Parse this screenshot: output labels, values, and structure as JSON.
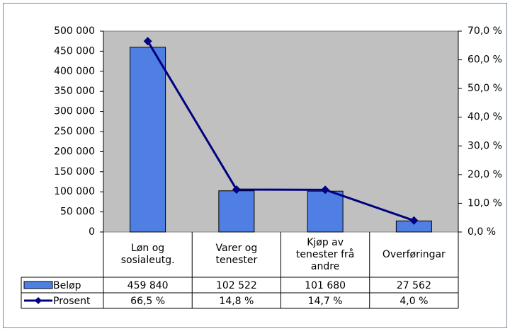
{
  "chart_data": {
    "type": "bar_line",
    "categories": [
      "Løn og sosialeutg.",
      "Varer og tenester",
      "Kjøp av tenester frå andre",
      "Overføringar"
    ],
    "series": [
      {
        "name": "Beløp",
        "type": "bar",
        "color": "#4f7fe3",
        "values": [
          459840,
          102522,
          101680,
          27562
        ],
        "value_labels": [
          "459 840",
          "102 522",
          "101 680",
          "27 562"
        ]
      },
      {
        "name": "Prosent",
        "type": "line",
        "axis": "y2",
        "color": "#000080",
        "values": [
          66.5,
          14.8,
          14.7,
          4.0
        ],
        "value_labels": [
          "66,5 %",
          "14,8 %",
          "14,7 %",
          "4,0 %"
        ]
      }
    ],
    "ylim": [
      0,
      500000
    ],
    "yticks": [
      0,
      {
        "value": 50000,
        "label": "50 000"
      },
      {
        "value": 100000,
        "label": "100 000"
      },
      {
        "value": 150000,
        "label": "150 000"
      },
      {
        "value": 200000,
        "label": "200 000"
      },
      {
        "value": 250000,
        "label": "250 000"
      },
      {
        "value": 300000,
        "label": "300 000"
      },
      {
        "value": 350000,
        "label": "350 000"
      },
      {
        "value": 400000,
        "label": "400 000"
      },
      {
        "value": 450000,
        "label": "450 000"
      },
      {
        "value": 500000,
        "label": "500 000"
      }
    ],
    "y2lim": [
      0,
      70
    ],
    "y2ticks": [
      {
        "value": 0,
        "label": "0,0 %"
      },
      {
        "value": 10,
        "label": "10,0 %"
      },
      {
        "value": 20,
        "label": "20,0 %"
      },
      {
        "value": 30,
        "label": "30,0 %"
      },
      {
        "value": 40,
        "label": "40,0 %"
      },
      {
        "value": 50,
        "label": "50,0 %"
      },
      {
        "value": 60,
        "label": "60,0 %"
      },
      {
        "value": 70,
        "label": "70,0 %"
      }
    ],
    "plot_background": "#c0c0c0"
  }
}
